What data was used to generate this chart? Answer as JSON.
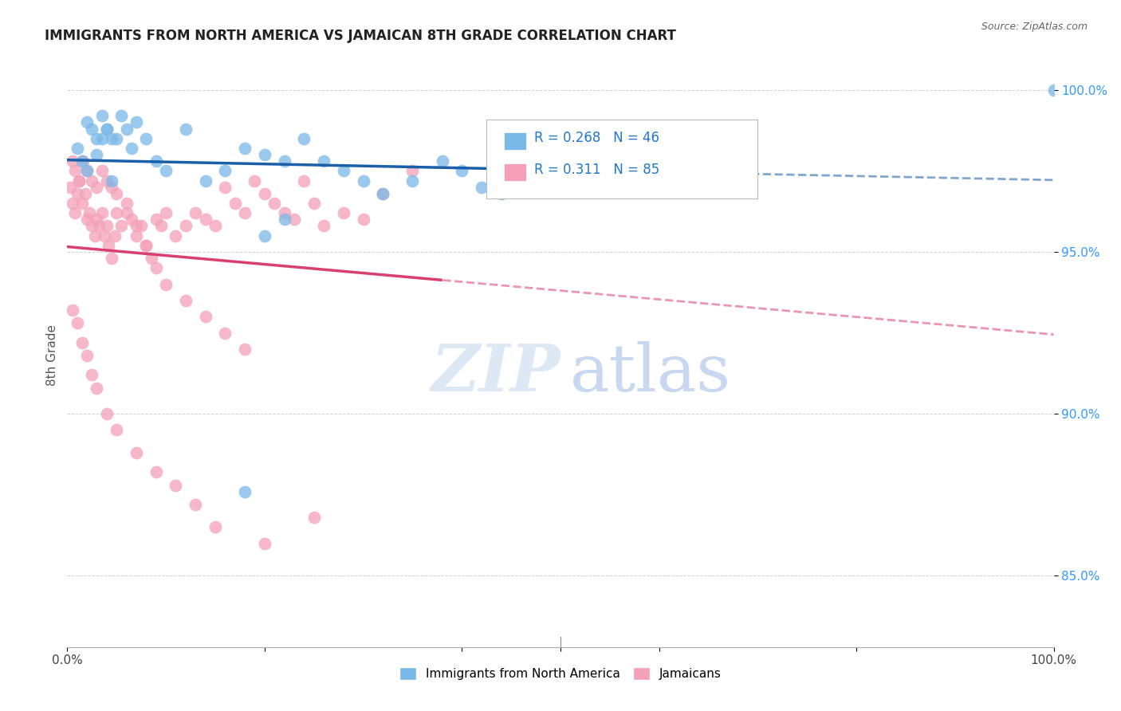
{
  "title": "IMMIGRANTS FROM NORTH AMERICA VS JAMAICAN 8TH GRADE CORRELATION CHART",
  "source": "Source: ZipAtlas.com",
  "ylabel": "8th Grade",
  "blue_R": 0.268,
  "blue_N": 46,
  "pink_R": 0.311,
  "pink_N": 85,
  "legend_label_blue": "Immigrants from North America",
  "legend_label_pink": "Jamaicans",
  "blue_color": "#7ab8e8",
  "pink_color": "#f4a0b8",
  "blue_line_color": "#1a5fa8",
  "pink_line_color": "#d94070",
  "blue_scatter_x": [
    0.02,
    0.025,
    0.03,
    0.035,
    0.04,
    0.045,
    0.01,
    0.015,
    0.02,
    0.03,
    0.035,
    0.04,
    0.045,
    0.05,
    0.055,
    0.06,
    0.065,
    0.07,
    0.08,
    0.09,
    0.1,
    0.12,
    0.14,
    0.16,
    0.18,
    0.2,
    0.22,
    0.24,
    0.26,
    0.28,
    0.3,
    0.32,
    0.35,
    0.38,
    0.4,
    0.42,
    0.44,
    0.46,
    0.5,
    0.55,
    0.6,
    0.65,
    0.2,
    0.22,
    0.18,
    1.0
  ],
  "blue_scatter_y": [
    0.99,
    0.988,
    0.985,
    0.992,
    0.988,
    0.985,
    0.982,
    0.978,
    0.975,
    0.98,
    0.985,
    0.988,
    0.972,
    0.985,
    0.992,
    0.988,
    0.982,
    0.99,
    0.985,
    0.978,
    0.975,
    0.988,
    0.972,
    0.975,
    0.982,
    0.98,
    0.978,
    0.985,
    0.978,
    0.975,
    0.972,
    0.968,
    0.972,
    0.978,
    0.975,
    0.97,
    0.968,
    0.972,
    0.978,
    0.975,
    0.972,
    0.978,
    0.955,
    0.96,
    0.876,
    1.0
  ],
  "pink_scatter_x": [
    0.003,
    0.005,
    0.008,
    0.01,
    0.012,
    0.015,
    0.018,
    0.02,
    0.022,
    0.025,
    0.028,
    0.03,
    0.032,
    0.035,
    0.038,
    0.04,
    0.042,
    0.045,
    0.048,
    0.05,
    0.055,
    0.06,
    0.065,
    0.07,
    0.075,
    0.08,
    0.085,
    0.09,
    0.095,
    0.1,
    0.11,
    0.12,
    0.13,
    0.14,
    0.15,
    0.16,
    0.17,
    0.18,
    0.19,
    0.2,
    0.21,
    0.22,
    0.23,
    0.24,
    0.25,
    0.26,
    0.28,
    0.3,
    0.32,
    0.35,
    0.005,
    0.008,
    0.012,
    0.016,
    0.02,
    0.025,
    0.03,
    0.035,
    0.04,
    0.045,
    0.05,
    0.06,
    0.07,
    0.08,
    0.09,
    0.1,
    0.12,
    0.14,
    0.16,
    0.18,
    0.005,
    0.01,
    0.015,
    0.02,
    0.025,
    0.03,
    0.04,
    0.05,
    0.07,
    0.09,
    0.11,
    0.13,
    0.15,
    0.2,
    0.25
  ],
  "pink_scatter_y": [
    0.97,
    0.965,
    0.962,
    0.968,
    0.972,
    0.965,
    0.968,
    0.96,
    0.962,
    0.958,
    0.955,
    0.96,
    0.958,
    0.962,
    0.955,
    0.958,
    0.952,
    0.948,
    0.955,
    0.962,
    0.958,
    0.965,
    0.96,
    0.955,
    0.958,
    0.952,
    0.948,
    0.96,
    0.958,
    0.962,
    0.955,
    0.958,
    0.962,
    0.96,
    0.958,
    0.97,
    0.965,
    0.962,
    0.972,
    0.968,
    0.965,
    0.962,
    0.96,
    0.972,
    0.965,
    0.958,
    0.962,
    0.96,
    0.968,
    0.975,
    0.978,
    0.975,
    0.972,
    0.978,
    0.975,
    0.972,
    0.97,
    0.975,
    0.972,
    0.97,
    0.968,
    0.962,
    0.958,
    0.952,
    0.945,
    0.94,
    0.935,
    0.93,
    0.925,
    0.92,
    0.932,
    0.928,
    0.922,
    0.918,
    0.912,
    0.908,
    0.9,
    0.895,
    0.888,
    0.882,
    0.878,
    0.872,
    0.865,
    0.86,
    0.868
  ]
}
